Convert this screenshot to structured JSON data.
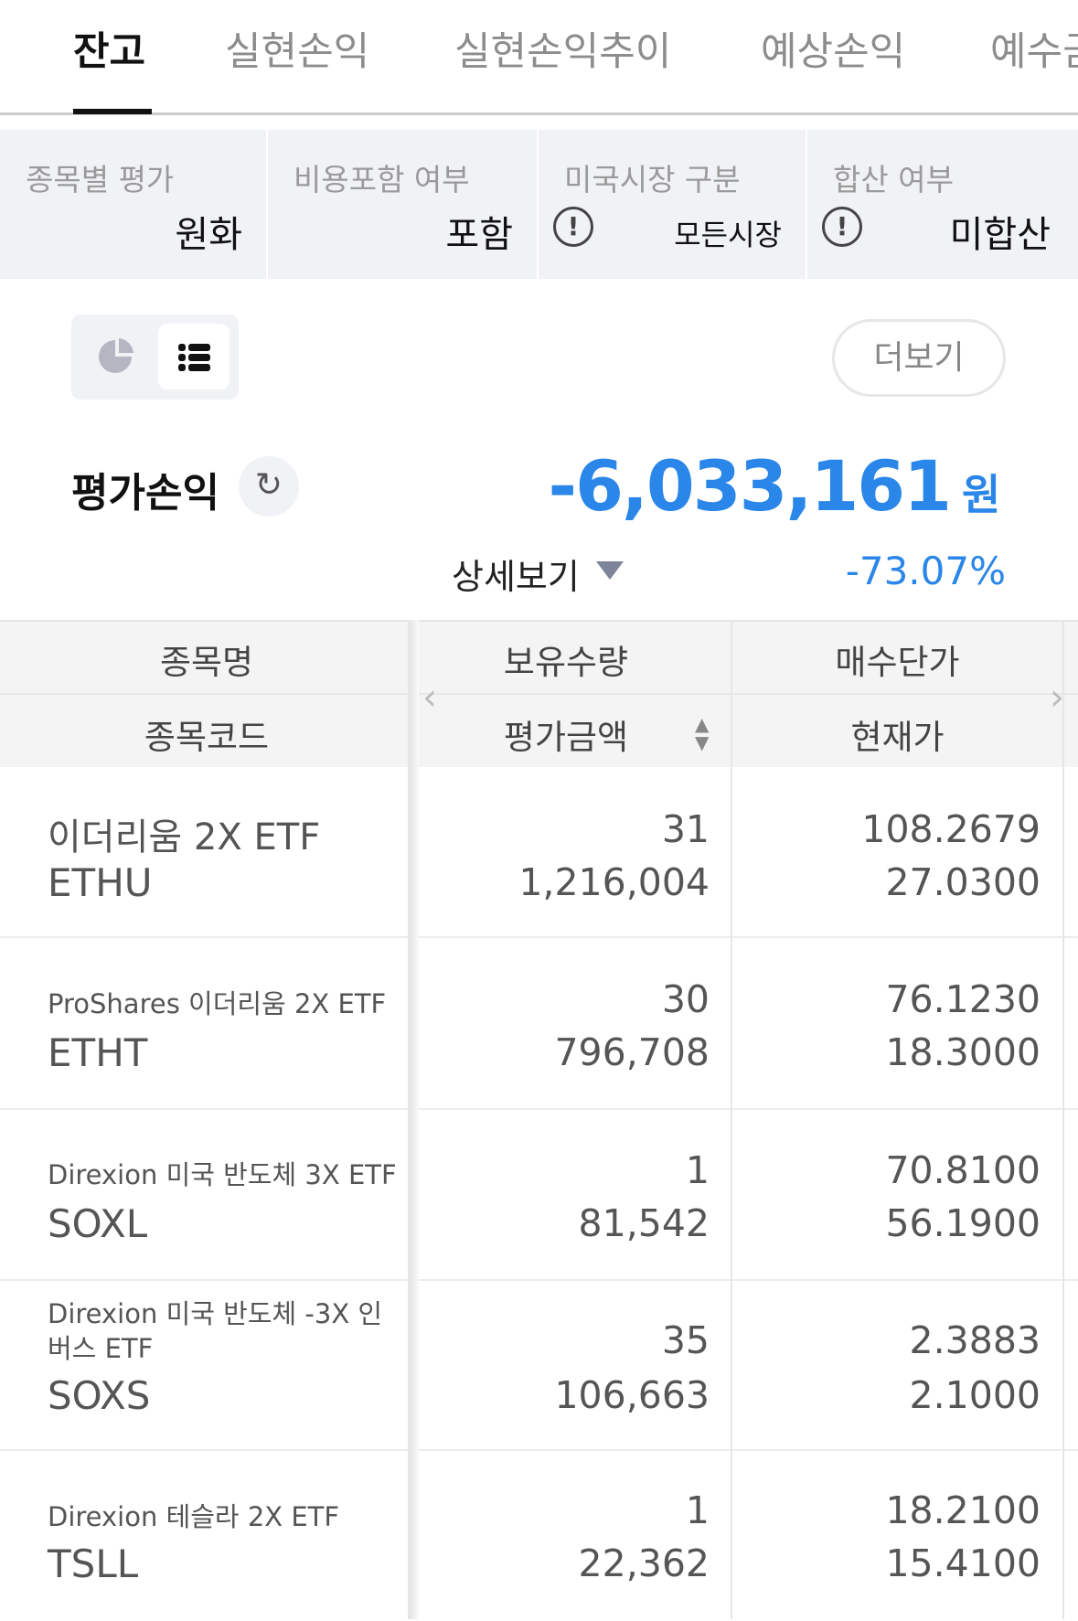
{
  "tabs": [
    {
      "label": "잔고",
      "active": true
    },
    {
      "label": "실현손익"
    },
    {
      "label": "실현손익추이"
    },
    {
      "label": "예상손익"
    },
    {
      "label": "예수금"
    }
  ],
  "filters": [
    {
      "label": "종목별 평가",
      "value": "원화"
    },
    {
      "label": "비용포함 여부",
      "value": "포함"
    },
    {
      "label": "미국시장 구분",
      "value": "모든시장",
      "icon": "exclamation-circle-icon"
    },
    {
      "label": "합산 여부",
      "value": "미합산",
      "icon": "exclamation-circle-icon"
    }
  ],
  "view_toggle": {
    "options": [
      "pie-chart-icon",
      "list-icon"
    ],
    "selected": "list-icon"
  },
  "more_label": "더보기",
  "summary": {
    "label": "평가손익",
    "amount": "-6,033,161",
    "unit": "원",
    "detail_label": "상세보기",
    "rate": "-73.07%",
    "color": "#2a86e8"
  },
  "table": {
    "headers": {
      "name": "종목명",
      "code": "종목코드",
      "qty": "보유수량",
      "eval": "평가금액",
      "buy_price": "매수단가",
      "cur_price": "현재가"
    },
    "rows": [
      {
        "name": "이더리움 2X ETF",
        "code": "ETHU",
        "qty": "31",
        "eval": "1,216,004",
        "buy_price": "108.2679",
        "cur_price": "27.0300"
      },
      {
        "name": "ProShares 이더리움 2X ETF",
        "code": "ETHT",
        "qty": "30",
        "eval": "796,708",
        "buy_price": "76.1230",
        "cur_price": "18.3000"
      },
      {
        "name": "Direxion 미국 반도체 3X ETF",
        "code": "SOXL",
        "qty": "1",
        "eval": "81,542",
        "buy_price": "70.8100",
        "cur_price": "56.1900"
      },
      {
        "name": "Direxion 미국 반도체 -3X 인버스 ETF",
        "code": "SOXS",
        "qty": "35",
        "eval": "106,663",
        "buy_price": "2.3883",
        "cur_price": "2.1000"
      },
      {
        "name": "Direxion 테슬라 2X ETF",
        "code": "TSLL",
        "qty": "1",
        "eval": "22,362",
        "buy_price": "18.2100",
        "cur_price": "15.4100"
      }
    ]
  }
}
